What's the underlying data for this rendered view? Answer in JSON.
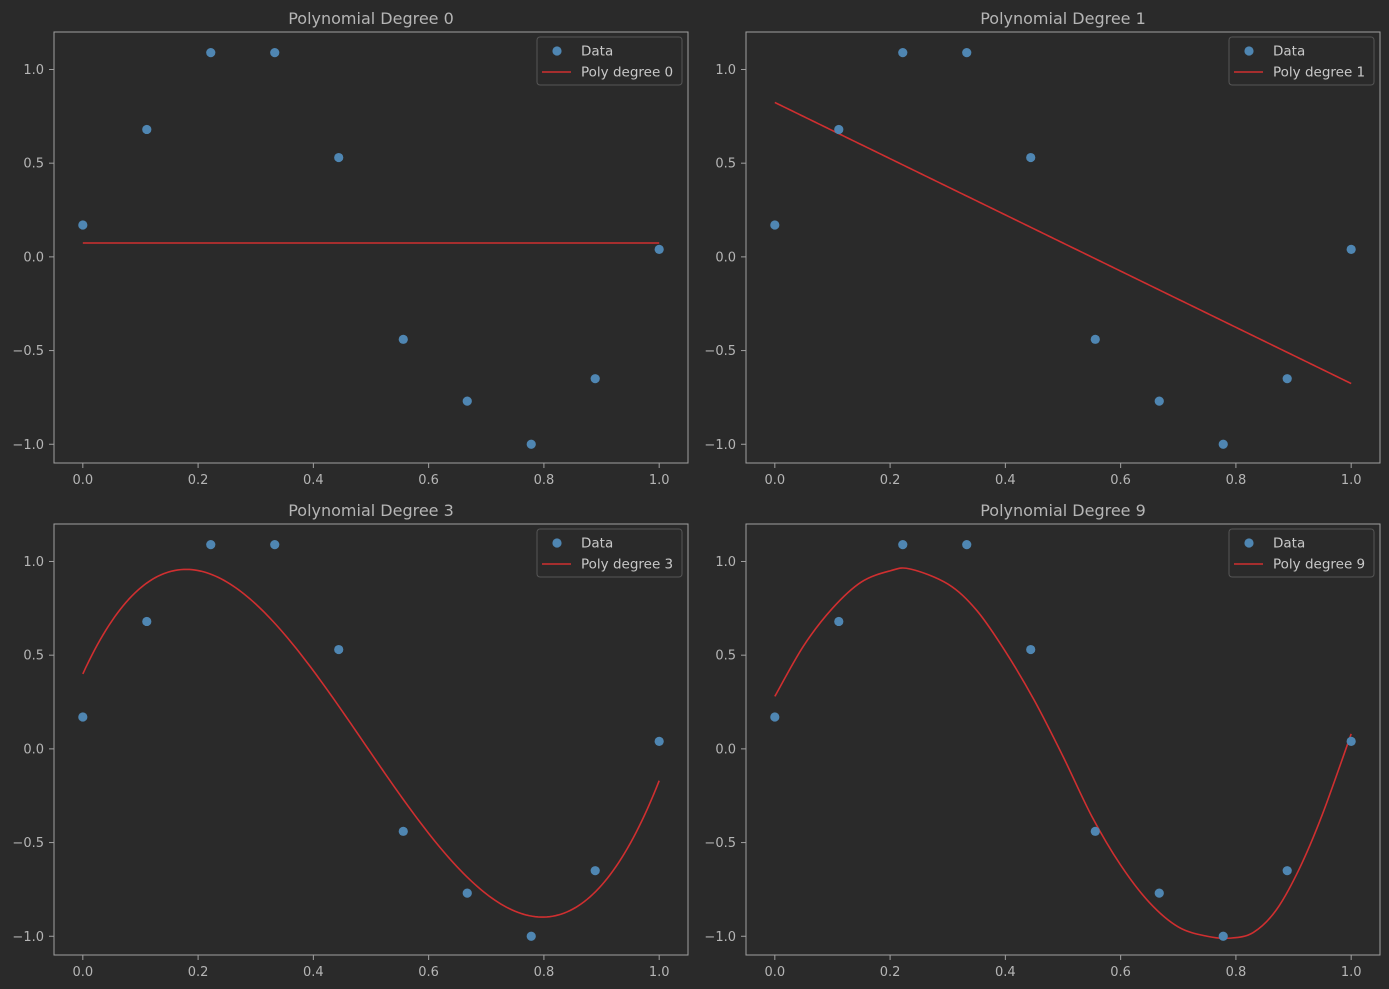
{
  "figure": {
    "background": "#2a2a2a",
    "axes_color": "#a0a0a0",
    "text_color": "#b5b5b5"
  },
  "colors": {
    "data": "#4f86b2",
    "fit": "#cf2f30",
    "legend_bg": "#2a2a2a",
    "legend_edge": "#555555"
  },
  "chart_data": [
    {
      "type": "scatter",
      "title": "Polynomial Degree 0",
      "xlim": [
        -0.05,
        1.05
      ],
      "ylim": [
        -1.1,
        1.2
      ],
      "xticks": [
        0.0,
        0.2,
        0.4,
        0.6,
        0.8,
        1.0
      ],
      "xtick_labels": [
        "0.0",
        "0.2",
        "0.4",
        "0.6",
        "0.8",
        "1.0"
      ],
      "yticks": [
        -1.0,
        -0.5,
        0.0,
        0.5,
        1.0
      ],
      "ytick_labels": [
        "−1.0",
        "−0.5",
        "0.0",
        "0.5",
        "1.0"
      ],
      "legend_position": "upper right",
      "series": [
        {
          "name": "Data",
          "kind": "scatter",
          "x": [
            0.0,
            0.111,
            0.222,
            0.333,
            0.444,
            0.556,
            0.667,
            0.778,
            0.889,
            1.0
          ],
          "y": [
            0.17,
            0.68,
            1.09,
            1.09,
            0.53,
            -0.44,
            -0.77,
            -1.0,
            -0.65,
            0.04
          ]
        },
        {
          "name": "Poly degree 0",
          "kind": "line",
          "coefficients": [
            0.074
          ]
        }
      ]
    },
    {
      "type": "scatter",
      "title": "Polynomial Degree 1",
      "xlim": [
        -0.05,
        1.05
      ],
      "ylim": [
        -1.1,
        1.2
      ],
      "xticks": [
        0.0,
        0.2,
        0.4,
        0.6,
        0.8,
        1.0
      ],
      "xtick_labels": [
        "0.0",
        "0.2",
        "0.4",
        "0.6",
        "0.8",
        "1.0"
      ],
      "yticks": [
        -1.0,
        -0.5,
        0.0,
        0.5,
        1.0
      ],
      "ytick_labels": [
        "−1.0",
        "−0.5",
        "0.0",
        "0.5",
        "1.0"
      ],
      "legend_position": "upper right",
      "series": [
        {
          "name": "Data",
          "kind": "scatter",
          "x": [
            0.0,
            0.111,
            0.222,
            0.333,
            0.444,
            0.556,
            0.667,
            0.778,
            0.889,
            1.0
          ],
          "y": [
            0.17,
            0.68,
            1.09,
            1.09,
            0.53,
            -0.44,
            -0.77,
            -1.0,
            -0.65,
            0.04
          ]
        },
        {
          "name": "Poly degree 1",
          "kind": "line",
          "coefficients": [
            0.824,
            -1.5
          ]
        }
      ]
    },
    {
      "type": "scatter",
      "title": "Polynomial Degree 3",
      "xlim": [
        -0.05,
        1.05
      ],
      "ylim": [
        -1.1,
        1.2
      ],
      "xticks": [
        0.0,
        0.2,
        0.4,
        0.6,
        0.8,
        1.0
      ],
      "xtick_labels": [
        "0.0",
        "0.2",
        "0.4",
        "0.6",
        "0.8",
        "1.0"
      ],
      "yticks": [
        -1.0,
        -0.5,
        0.0,
        0.5,
        1.0
      ],
      "ytick_labels": [
        "−1.0",
        "−0.5",
        "0.0",
        "0.5",
        "1.0"
      ],
      "legend_position": "upper right",
      "series": [
        {
          "name": "Data",
          "kind": "scatter",
          "x": [
            0.0,
            0.111,
            0.222,
            0.333,
            0.444,
            0.556,
            0.667,
            0.778,
            0.889,
            1.0
          ],
          "y": [
            0.17,
            0.68,
            1.09,
            1.09,
            0.53,
            -0.44,
            -0.77,
            -1.0,
            -0.65,
            0.04
          ]
        },
        {
          "name": "Poly degree 3",
          "kind": "line",
          "coefficients": [
            0.4,
            6.73,
            -23.0,
            15.7
          ]
        }
      ]
    },
    {
      "type": "scatter",
      "title": "Polynomial Degree 9",
      "xlim": [
        -0.05,
        1.05
      ],
      "ylim": [
        -1.1,
        1.2
      ],
      "xticks": [
        0.0,
        0.2,
        0.4,
        0.6,
        0.8,
        1.0
      ],
      "xtick_labels": [
        "0.0",
        "0.2",
        "0.4",
        "0.6",
        "0.8",
        "1.0"
      ],
      "yticks": [
        -1.0,
        -0.5,
        0.0,
        0.5,
        1.0
      ],
      "ytick_labels": [
        "−1.0",
        "−0.5",
        "0.0",
        "0.5",
        "1.0"
      ],
      "legend_position": "upper right",
      "series": [
        {
          "name": "Data",
          "kind": "scatter",
          "x": [
            0.0,
            0.111,
            0.222,
            0.333,
            0.444,
            0.556,
            0.667,
            0.778,
            0.889,
            1.0
          ],
          "y": [
            0.17,
            0.68,
            1.09,
            1.09,
            0.53,
            -0.44,
            -0.77,
            -1.0,
            -0.65,
            0.04
          ]
        },
        {
          "name": "Poly degree 9",
          "kind": "line",
          "curve_x": [
            0.0,
            0.05,
            0.1,
            0.15,
            0.2,
            0.235,
            0.3,
            0.35,
            0.4,
            0.45,
            0.5,
            0.55,
            0.6,
            0.65,
            0.7,
            0.75,
            0.79,
            0.83,
            0.87,
            0.91,
            0.95,
            1.0
          ],
          "curve_y": [
            0.28,
            0.55,
            0.75,
            0.89,
            0.95,
            0.96,
            0.88,
            0.74,
            0.52,
            0.26,
            -0.04,
            -0.36,
            -0.62,
            -0.82,
            -0.95,
            -1.0,
            -1.01,
            -0.98,
            -0.86,
            -0.64,
            -0.35,
            0.08
          ]
        }
      ]
    }
  ]
}
